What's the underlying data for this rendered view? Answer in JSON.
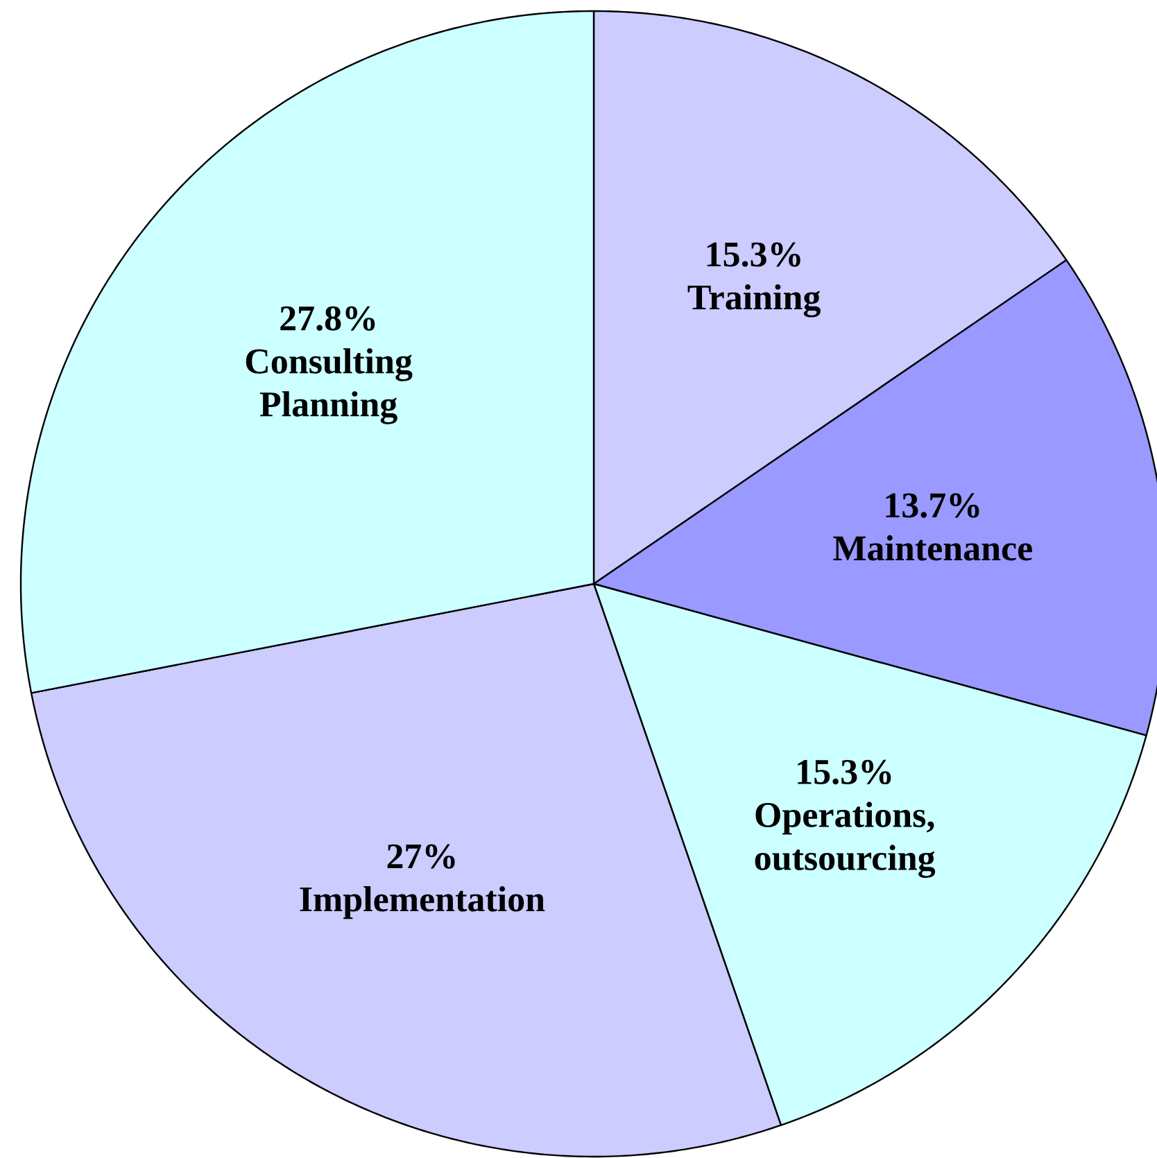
{
  "chart_data": {
    "type": "pie",
    "categories": [
      "Training",
      "Maintenance",
      "Operations, outsourcing",
      "Implementation",
      "Consulting Planning"
    ],
    "values": [
      15.3,
      13.7,
      15.3,
      27,
      27.8
    ],
    "value_labels": [
      "15.3%",
      "13.7%",
      "15.3%",
      "27%",
      "27.8%"
    ],
    "colors": [
      "#ccccff",
      "#9999ff",
      "#ccffff",
      "#ccccff",
      "#ccffff"
    ]
  }
}
